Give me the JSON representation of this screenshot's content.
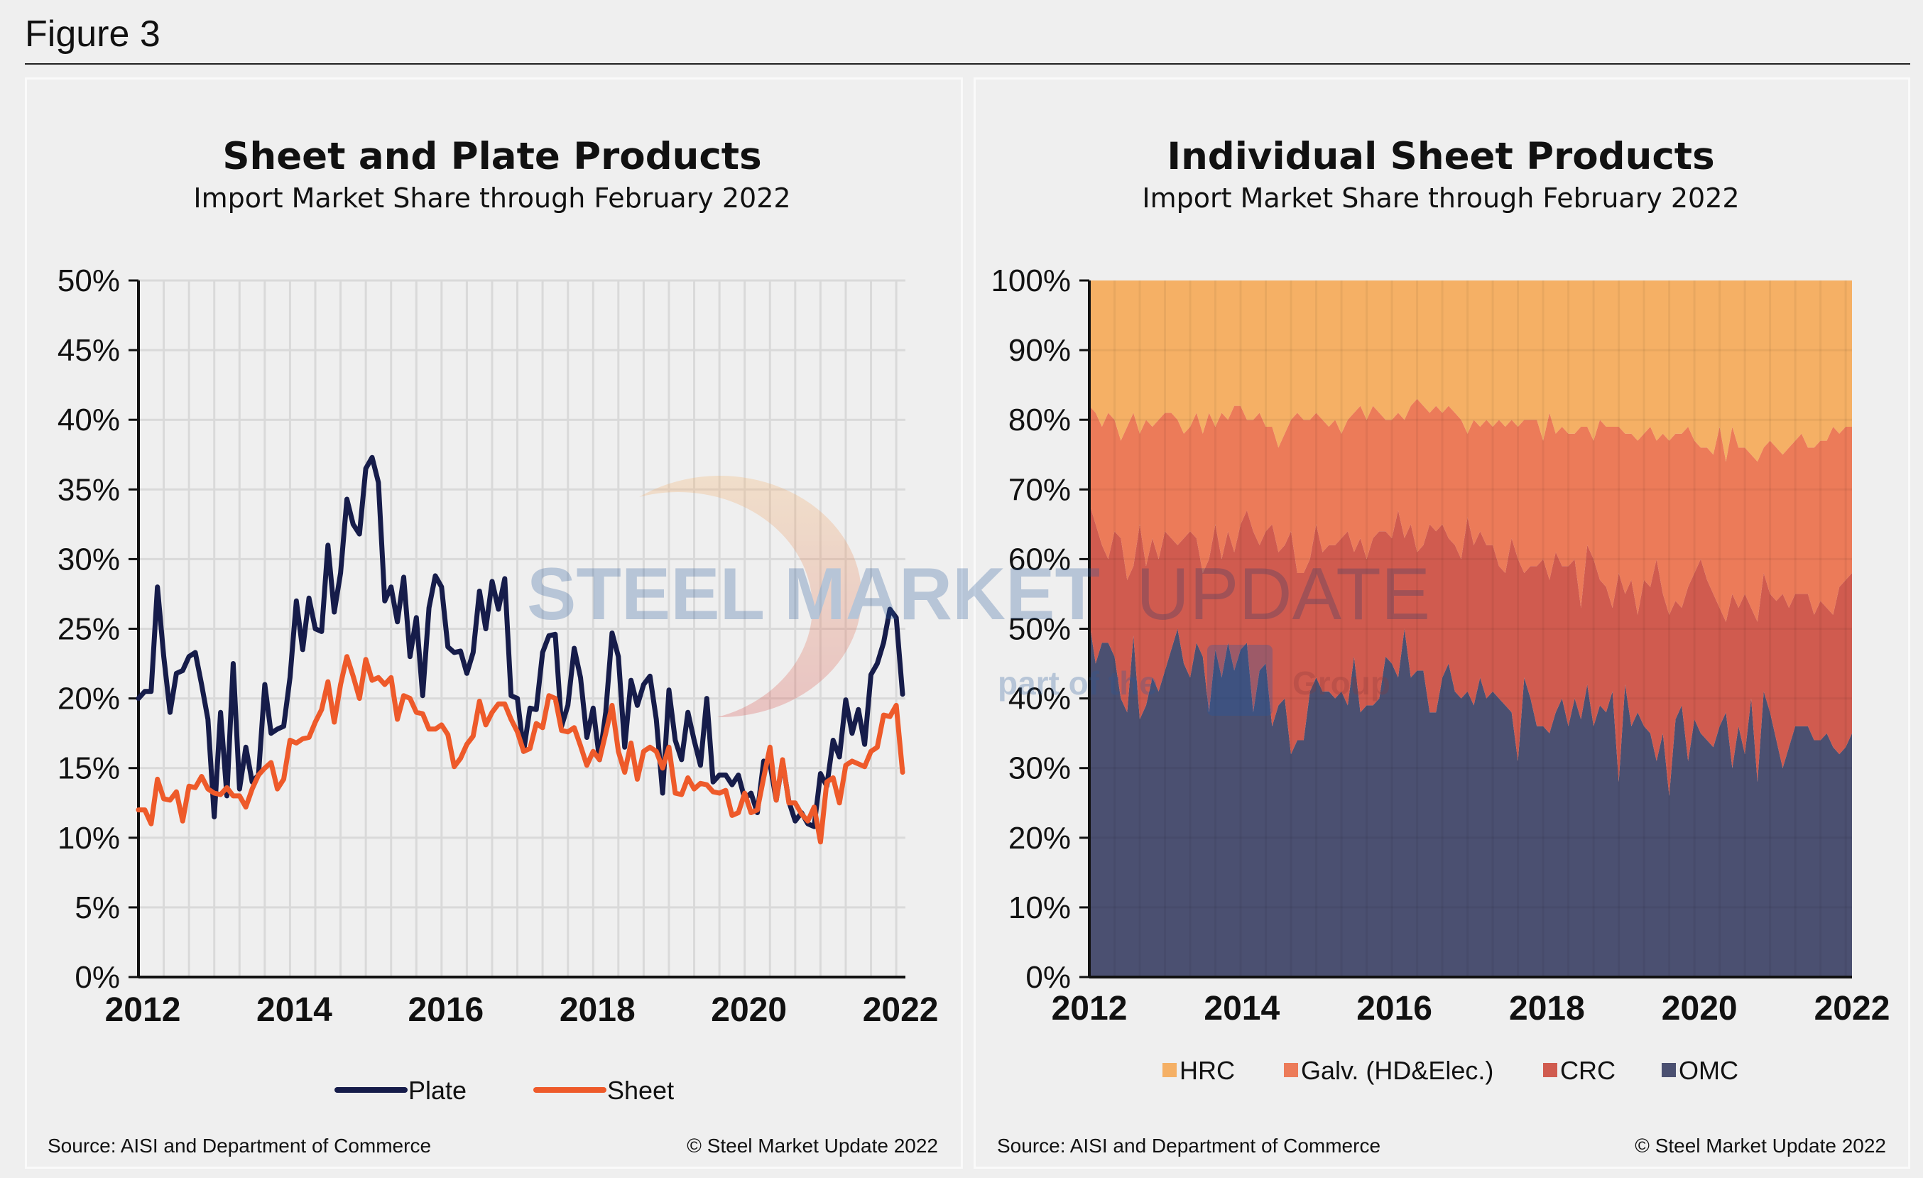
{
  "figure_title": "Figure 3",
  "watermark": {
    "line1_bold": "STEEL MARKET",
    "line1_light": "UPDATE",
    "line2": "part of the CRU Group"
  },
  "chart_data": [
    {
      "type": "line",
      "title": "Sheet and Plate Products",
      "subtitle": "Import Market Share through February 2022",
      "xlabel": "",
      "ylabel": "",
      "x_start": "Jan 2012",
      "x_end": "Feb 2022",
      "x_frequency": "monthly",
      "x_tick_labels": [
        "2012",
        "2014",
        "2016",
        "2018",
        "2020",
        "2022"
      ],
      "y_tick_labels": [
        "0%",
        "5%",
        "10%",
        "15%",
        "20%",
        "25%",
        "30%",
        "35%",
        "40%",
        "45%",
        "50%"
      ],
      "ylim": [
        0,
        50
      ],
      "y_unit": "%",
      "grid": true,
      "legend_placement": "bottom",
      "series": [
        {
          "name": "Plate",
          "color": "#161c4a",
          "values": [
            20,
            20.5,
            20.5,
            28,
            23,
            19,
            21.8,
            22,
            23,
            23.3,
            21,
            18.5,
            11.5,
            19,
            13,
            22.5,
            13.5,
            16.5,
            14,
            14.5,
            21,
            17.5,
            17.8,
            18,
            21.5,
            27,
            23.5,
            27.2,
            25,
            24.8,
            31,
            26.2,
            29,
            34.3,
            32.5,
            31.8,
            36.5,
            37.3,
            35.5,
            27,
            28,
            25.5,
            28.7,
            23,
            25.8,
            20.2,
            26.5,
            28.8,
            28,
            23.7,
            23.3,
            23.4,
            21.8,
            23.3,
            27.7,
            25,
            28.4,
            26.4,
            28.6,
            20.2,
            20,
            16.2,
            19.3,
            19.2,
            23.3,
            24.5,
            24.6,
            18,
            19.5,
            23.6,
            21.5,
            17.2,
            19.3,
            15.6,
            19,
            24.7,
            23,
            16.5,
            21.3,
            19.5,
            21,
            21.6,
            18.5,
            13.2,
            20.6,
            17,
            15.6,
            19,
            17,
            15.2,
            20,
            14,
            14.5,
            14.5,
            13.8,
            14.5,
            12.8,
            13.2,
            11.8,
            15.5,
            15.3,
            12.7,
            15.5,
            12.6,
            11.2,
            11.8,
            11,
            10.8,
            14.6,
            13.7,
            17,
            15.8,
            19.9,
            17.5,
            19.2,
            16.7,
            21.7,
            22.5,
            24,
            26.4,
            25.8,
            20.3
          ]
        },
        {
          "name": "Sheet",
          "color": "#ee5a2a",
          "values": [
            12,
            12,
            11,
            14.2,
            12.8,
            12.7,
            13.3,
            11.2,
            13.7,
            13.6,
            14.4,
            13.5,
            13.2,
            13.1,
            13.6,
            13,
            13,
            12.2,
            13.5,
            14.5,
            15,
            15.4,
            13.5,
            14.2,
            17,
            16.8,
            17.1,
            17.2,
            18.3,
            19.2,
            21.2,
            18.3,
            21,
            23,
            21.6,
            20,
            22.8,
            21.3,
            21.5,
            21,
            21.5,
            18.5,
            20.2,
            20,
            19,
            18.9,
            17.8,
            17.8,
            18.1,
            17.4,
            15.1,
            15.7,
            16.7,
            17.3,
            19.8,
            18.1,
            19,
            19.6,
            19.6,
            18.5,
            17.6,
            16.2,
            16.4,
            18.2,
            17.9,
            20.2,
            20,
            17.7,
            17.6,
            17.9,
            16.6,
            15.2,
            16.2,
            15.6,
            17.5,
            19.5,
            16.2,
            14.7,
            16.8,
            14.2,
            16.2,
            16.5,
            16.2,
            15,
            16.5,
            13.2,
            13.1,
            14.3,
            13.5,
            13.9,
            13.8,
            13.3,
            13.2,
            13.4,
            11.6,
            11.8,
            13.2,
            11.8,
            12,
            14.3,
            16.5,
            12.7,
            15.6,
            12.5,
            12.5,
            11.7,
            11.2,
            12.2,
            9.7,
            14,
            14.3,
            12.5,
            15.2,
            15.5,
            15.3,
            15.1,
            16.2,
            16.5,
            18.8,
            18.7,
            19.5,
            14.7
          ]
        }
      ],
      "source": "Source: AISI and Department of Commerce",
      "copyright": "© Steel Market Update 2022"
    },
    {
      "type": "area",
      "stacked": "percent",
      "title": "Individual Sheet Products",
      "subtitle": "Import Market Share through February 2022",
      "xlabel": "",
      "ylabel": "",
      "x_start": "Jan 2012",
      "x_end": "Feb 2022",
      "x_frequency": "monthly",
      "x_tick_labels": [
        "2012",
        "2014",
        "2016",
        "2018",
        "2020",
        "2022"
      ],
      "y_tick_labels": [
        "0%",
        "10%",
        "20%",
        "30%",
        "40%",
        "50%",
        "60%",
        "70%",
        "80%",
        "90%",
        "100%"
      ],
      "ylim": [
        0,
        100
      ],
      "y_unit": "%",
      "grid": true,
      "legend_placement": "bottom",
      "series": [
        {
          "name": "OMC",
          "color": "#4b5071",
          "values": [
            51,
            45,
            48,
            48,
            46,
            40,
            38,
            49,
            37,
            39,
            43,
            41,
            44,
            47,
            50,
            45,
            43,
            48,
            46,
            38,
            47,
            43,
            48,
            44,
            47,
            48,
            38,
            44,
            45,
            36,
            39,
            40,
            32,
            34,
            34,
            41,
            43,
            41,
            41,
            40,
            41,
            39,
            46,
            38,
            39,
            39,
            40,
            46,
            45,
            43,
            50,
            43,
            44,
            44,
            38,
            38,
            43,
            45,
            41,
            40,
            41,
            39,
            43,
            40,
            41,
            40,
            39,
            38,
            31,
            43,
            40,
            36,
            36,
            35,
            38,
            40,
            36,
            40,
            37,
            42,
            36,
            39,
            38,
            41,
            28,
            42,
            36,
            38,
            36,
            35,
            31,
            35,
            26,
            37,
            39,
            31,
            37,
            35,
            34,
            33,
            36,
            38,
            30,
            36,
            32,
            40,
            28,
            41,
            38,
            34,
            30,
            33,
            36,
            36,
            36,
            34,
            34,
            35,
            33,
            32,
            33,
            35
          ]
        },
        {
          "name": "CRC",
          "color": "#d05b4f",
          "values": [
            17,
            20,
            14,
            12,
            18,
            23,
            19,
            10,
            28,
            20,
            20,
            19,
            20,
            16,
            12,
            18,
            21,
            15,
            12,
            22,
            18,
            17,
            16,
            17,
            18,
            19,
            26,
            18,
            19,
            29,
            22,
            22,
            32,
            24,
            24,
            19,
            22,
            20,
            21,
            22,
            22,
            25,
            15,
            25,
            21,
            24,
            24,
            18,
            18,
            24,
            13,
            22,
            17,
            18,
            27,
            26,
            22,
            18,
            21,
            20,
            25,
            23,
            21,
            22,
            21,
            19,
            19,
            25,
            29,
            15,
            19,
            23,
            24,
            22,
            23,
            19,
            23,
            20,
            16,
            20,
            24,
            18,
            18,
            12,
            30,
            13,
            21,
            14,
            21,
            21,
            29,
            20,
            26,
            17,
            14,
            25,
            21,
            25,
            23,
            22,
            17,
            13,
            25,
            17,
            23,
            13,
            23,
            17,
            17,
            20,
            25,
            20,
            19,
            19,
            19,
            18,
            20,
            18,
            19,
            24,
            24,
            23
          ]
        },
        {
          "name": "Galv. (HD&Elec.)",
          "color": "#ec7b59",
          "values": [
            14,
            16,
            17,
            21,
            16,
            14,
            22,
            22,
            13,
            21,
            16,
            20,
            17,
            18,
            18,
            15,
            15,
            18,
            20,
            21,
            14,
            21,
            16,
            21,
            17,
            13,
            16,
            19,
            15,
            14,
            15,
            16,
            16,
            23,
            22,
            20,
            16,
            19,
            17,
            18,
            15,
            16,
            20,
            19,
            20,
            19,
            17,
            16,
            17,
            14,
            17,
            17,
            22,
            20,
            16,
            18,
            16,
            19,
            19,
            20,
            12,
            18,
            15,
            18,
            17,
            21,
            21,
            17,
            19,
            22,
            21,
            21,
            17,
            24,
            17,
            20,
            19,
            18,
            26,
            17,
            17,
            23,
            23,
            26,
            21,
            23,
            21,
            25,
            21,
            23,
            17,
            23,
            25,
            24,
            25,
            23,
            19,
            16,
            19,
            20,
            26,
            23,
            24,
            23,
            21,
            22,
            23,
            18,
            22,
            22,
            20,
            23,
            22,
            23,
            21,
            24,
            23,
            24,
            27,
            22,
            22,
            21
          ]
        },
        {
          "name": "HRC",
          "color": "#f5b065",
          "values": [
            18,
            19,
            21,
            19,
            20,
            23,
            21,
            19,
            22,
            20,
            21,
            20,
            19,
            19,
            20,
            22,
            21,
            19,
            22,
            19,
            21,
            19,
            20,
            18,
            18,
            20,
            20,
            19,
            21,
            21,
            24,
            22,
            20,
            19,
            20,
            20,
            19,
            20,
            21,
            20,
            22,
            20,
            19,
            18,
            20,
            18,
            19,
            20,
            20,
            19,
            20,
            18,
            17,
            18,
            19,
            18,
            19,
            18,
            19,
            20,
            22,
            20,
            21,
            20,
            21,
            20,
            21,
            20,
            21,
            20,
            20,
            20,
            23,
            19,
            22,
            21,
            22,
            22,
            21,
            21,
            23,
            20,
            21,
            21,
            21,
            22,
            22,
            23,
            22,
            21,
            23,
            22,
            23,
            22,
            22,
            21,
            23,
            24,
            24,
            25,
            21,
            26,
            21,
            24,
            24,
            25,
            26,
            24,
            23,
            24,
            25,
            24,
            23,
            22,
            24,
            24,
            23,
            23,
            21,
            22,
            21,
            21
          ]
        }
      ],
      "legend_order": [
        "HRC",
        "Galv. (HD&Elec.)",
        "CRC",
        "OMC"
      ],
      "source": "Source: AISI and Department of Commerce",
      "copyright": "© Steel Market Update 2022"
    }
  ]
}
